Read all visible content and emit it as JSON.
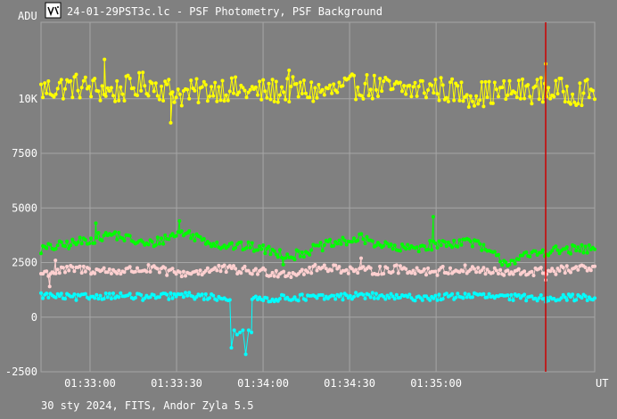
{
  "window": {
    "title": "24-01-29PST3c.lc - PSF Photometry, PSF Background",
    "icon": "app-logo-icon"
  },
  "footer": "30 sty 2024, FITS, Andor Zyla 5.5",
  "colors": {
    "background": "#808080",
    "grid": "#a6a6a6",
    "text": "#ffffff",
    "cursor": "#cc0000",
    "yellow": "#ffff00",
    "green": "#00ff00",
    "pink": "#ffd0d0",
    "cyan": "#00ffff"
  },
  "chart_data": {
    "type": "scatter",
    "title": "24-01-29PST3c.lc - PSF Photometry, PSF Background",
    "ylabel": "ADU",
    "xlabel": "UT",
    "ylim": [
      -2500,
      13500
    ],
    "xlim": [
      "01:32:43",
      "01:35:55"
    ],
    "y_ticks": [
      {
        "value": 10000,
        "label": "10K"
      },
      {
        "value": 7500,
        "label": "7500"
      },
      {
        "value": 5000,
        "label": "5000"
      },
      {
        "value": 2500,
        "label": "2500"
      },
      {
        "value": 0,
        "label": "0"
      },
      {
        "value": -2500,
        "label": "-2500"
      }
    ],
    "x_ticks": [
      "01:33:00",
      "01:33:30",
      "01:34:00",
      "01:34:30",
      "01:35:00"
    ],
    "grid": true,
    "cursor": {
      "time": "01:35:38"
    },
    "series": [
      {
        "color": "#ffff00",
        "level": 10300,
        "noise": 600,
        "x": [
          "01:32:43",
          "01:32:55",
          "01:33:08",
          "01:33:20",
          "01:33:32",
          "01:33:45",
          "01:33:57",
          "01:34:10",
          "01:34:22",
          "01:34:34",
          "01:34:47",
          "01:34:59",
          "01:35:12",
          "01:35:24",
          "01:35:37",
          "01:35:49"
        ],
        "values": [
          10400,
          10600,
          10300,
          10700,
          10200,
          10500,
          10300,
          10400,
          10300,
          10600,
          10400,
          10500,
          10200,
          10300,
          10400,
          10300
        ],
        "outliers": [
          {
            "time": "01:33:28",
            "value": 8900
          },
          {
            "time": "01:33:05",
            "value": 11800
          },
          {
            "time": "01:35:38",
            "value": 11600
          },
          {
            "time": "01:34:09",
            "value": 11300
          }
        ]
      },
      {
        "color": "#00ff00",
        "level": 3300,
        "noise": 220,
        "x": [
          "01:32:43",
          "01:32:55",
          "01:33:08",
          "01:33:20",
          "01:33:32",
          "01:33:45",
          "01:33:57",
          "01:34:10",
          "01:34:22",
          "01:34:34",
          "01:34:47",
          "01:34:59",
          "01:35:12",
          "01:35:24",
          "01:35:37",
          "01:35:49"
        ],
        "values": [
          3100,
          3400,
          3800,
          3300,
          3900,
          3300,
          3200,
          2800,
          3300,
          3600,
          3100,
          3300,
          3500,
          2500,
          3000,
          3100
        ],
        "outliers": [
          {
            "time": "01:34:59",
            "value": 4600
          },
          {
            "time": "01:33:31",
            "value": 4400
          },
          {
            "time": "01:33:02",
            "value": 4300
          },
          {
            "time": "01:34:07",
            "value": 2400
          }
        ]
      },
      {
        "color": "#ffd0d0",
        "level": 2100,
        "noise": 200,
        "x": [
          "01:32:43",
          "01:32:55",
          "01:33:08",
          "01:33:20",
          "01:33:32",
          "01:33:45",
          "01:33:57",
          "01:34:10",
          "01:34:22",
          "01:34:34",
          "01:34:47",
          "01:34:59",
          "01:35:12",
          "01:35:24",
          "01:35:37",
          "01:35:49"
        ],
        "values": [
          2000,
          2200,
          2100,
          2200,
          2000,
          2200,
          2100,
          2000,
          2300,
          2100,
          2200,
          2100,
          2200,
          2000,
          2100,
          2200
        ],
        "outliers": [
          {
            "time": "01:32:46",
            "value": 1400
          },
          {
            "time": "01:32:48",
            "value": 2600
          },
          {
            "time": "01:34:34",
            "value": 2700
          },
          {
            "time": "01:35:38",
            "value": 1700
          }
        ]
      },
      {
        "color": "#00ffff",
        "level": 900,
        "noise": 150,
        "x": [
          "01:32:43",
          "01:32:55",
          "01:33:08",
          "01:33:20",
          "01:33:32",
          "01:33:45",
          "01:33:57",
          "01:34:10",
          "01:34:22",
          "01:34:34",
          "01:34:47",
          "01:34:59",
          "01:35:12",
          "01:35:24",
          "01:35:37",
          "01:35:49"
        ],
        "values": [
          1000,
          900,
          1000,
          900,
          1000,
          900,
          800,
          900,
          900,
          1000,
          900,
          900,
          1000,
          900,
          900,
          900
        ],
        "dip": {
          "start": "01:33:49",
          "end": "01:33:56",
          "times": [
            "01:33:49",
            "01:33:50",
            "01:33:51",
            "01:33:52",
            "01:33:53",
            "01:33:54",
            "01:33:55",
            "01:33:56"
          ],
          "values": [
            -1400,
            -600,
            -800,
            -700,
            -600,
            -1700,
            -600,
            -700
          ]
        },
        "outliers": [
          {
            "time": "01:35:38",
            "value": 700
          }
        ]
      }
    ]
  }
}
